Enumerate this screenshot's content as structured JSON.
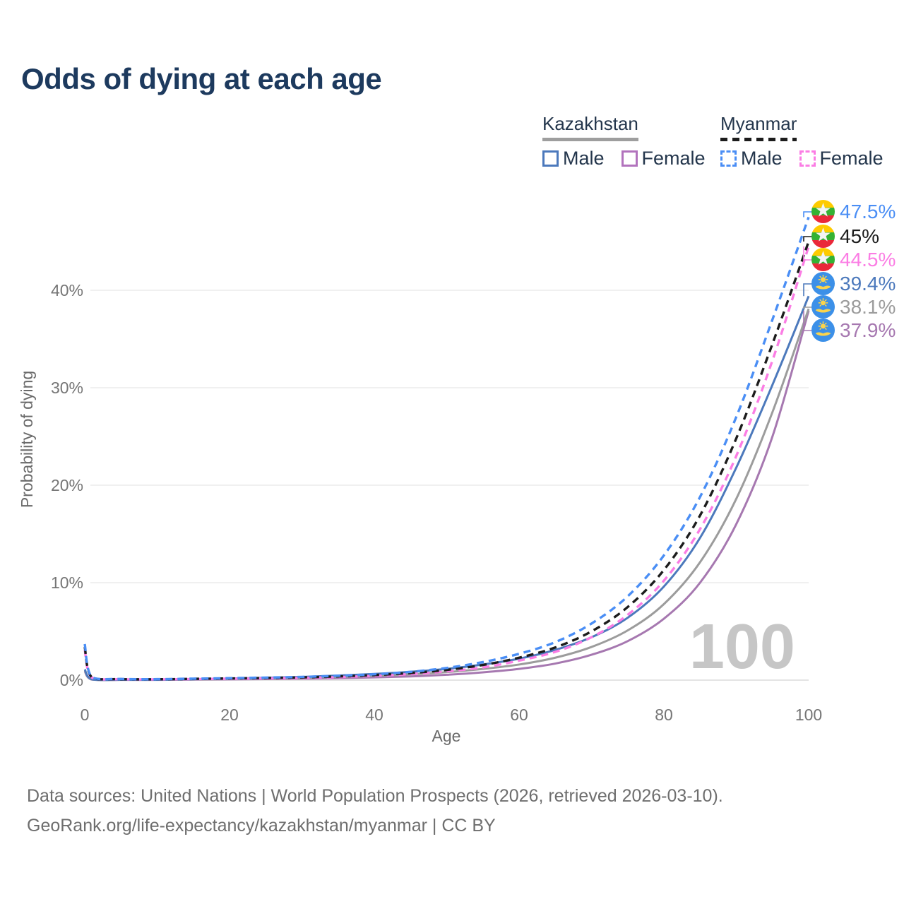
{
  "title": "Odds of dying at each age",
  "legend": {
    "groups": [
      {
        "country": "Kazakhstan",
        "line_style": "solid",
        "line_color": "#9e9e9e",
        "items": [
          {
            "label": "Male",
            "color": "#4c79bc"
          },
          {
            "label": "Female",
            "color": "#b273bd"
          }
        ]
      },
      {
        "country": "Myanmar",
        "line_style": "dashed",
        "line_color": "#1c1c1c",
        "items": [
          {
            "label": "Male",
            "color": "#4a8ef5"
          },
          {
            "label": "Female",
            "color": "#fb7de4"
          }
        ]
      }
    ]
  },
  "watermark_age": "100",
  "footer": {
    "line1": "Data sources: United Nations | World Population Prospects (2026, retrieved 2026-03-10).",
    "line2": "GeoRank.org/life-expectancy/kazakhstan/myanmar | CC BY"
  },
  "chart_data": {
    "type": "line",
    "title": "Odds of dying at each age",
    "xlabel": "Age",
    "ylabel": "Probability of dying",
    "xlim": [
      0,
      100
    ],
    "ylim": [
      0,
      48
    ],
    "xticks": [
      0,
      20,
      40,
      60,
      80,
      100
    ],
    "ytick_values": [
      0,
      10,
      20,
      30,
      40
    ],
    "ytick_labels": [
      "0%",
      "10%",
      "20%",
      "30%",
      "40%"
    ],
    "grid": "horizontal",
    "legend_position": "top-right",
    "ages": [
      0,
      1,
      5,
      10,
      15,
      20,
      25,
      30,
      35,
      40,
      45,
      50,
      55,
      60,
      65,
      70,
      75,
      80,
      85,
      90,
      95,
      100
    ],
    "series": [
      {
        "name": "Myanmar Male",
        "country": "Myanmar",
        "sex": "male",
        "flag": "myanmar",
        "style": "dashed",
        "color": "#4a8ef5",
        "end_label": "47.5%",
        "end_value": 47.5,
        "values": [
          3.7,
          0.3,
          0.12,
          0.1,
          0.15,
          0.2,
          0.26,
          0.33,
          0.45,
          0.6,
          0.85,
          1.25,
          1.85,
          2.7,
          3.9,
          5.8,
          8.6,
          12.8,
          18.8,
          27.0,
          37.0,
          47.5
        ]
      },
      {
        "name": "Myanmar",
        "country": "Myanmar",
        "sex": "both",
        "flag": "myanmar",
        "style": "dashed",
        "color": "#1c1c1c",
        "end_label": "45%",
        "end_value": 45,
        "values": [
          3.4,
          0.27,
          0.1,
          0.09,
          0.13,
          0.17,
          0.22,
          0.28,
          0.38,
          0.52,
          0.73,
          1.05,
          1.55,
          2.3,
          3.35,
          5.0,
          7.5,
          11.3,
          16.9,
          24.8,
          34.5,
          45.0
        ]
      },
      {
        "name": "Myanmar Female",
        "country": "Myanmar",
        "sex": "female",
        "flag": "myanmar",
        "style": "dashed",
        "color": "#fb7de4",
        "end_label": "44.5%",
        "end_value": 44.5,
        "values": [
          3.1,
          0.25,
          0.09,
          0.08,
          0.11,
          0.14,
          0.18,
          0.23,
          0.31,
          0.44,
          0.62,
          0.9,
          1.3,
          2.0,
          2.9,
          4.4,
          6.7,
          10.2,
          15.5,
          23.0,
          32.8,
          44.5
        ]
      },
      {
        "name": "Kazakhstan Male",
        "country": "Kazakhstan",
        "sex": "male",
        "flag": "kazakhstan",
        "style": "solid",
        "color": "#4c79bc",
        "end_label": "39.4%",
        "end_value": 39.4,
        "values": [
          1.1,
          0.08,
          0.04,
          0.04,
          0.09,
          0.16,
          0.24,
          0.33,
          0.47,
          0.63,
          0.85,
          1.15,
          1.6,
          2.2,
          3.1,
          4.4,
          6.4,
          9.6,
          14.6,
          21.8,
          30.3,
          39.4
        ]
      },
      {
        "name": "Kazakhstan",
        "country": "Kazakhstan",
        "sex": "both",
        "flag": "kazakhstan",
        "style": "solid",
        "color": "#9c9c9c",
        "end_label": "38.1%",
        "end_value": 38.1,
        "values": [
          1.0,
          0.07,
          0.035,
          0.035,
          0.07,
          0.12,
          0.17,
          0.24,
          0.33,
          0.45,
          0.6,
          0.82,
          1.15,
          1.6,
          2.3,
          3.4,
          5.1,
          7.8,
          12.1,
          18.6,
          27.5,
          38.1
        ]
      },
      {
        "name": "Kazakhstan Female",
        "country": "Kazakhstan",
        "sex": "female",
        "flag": "kazakhstan",
        "style": "solid",
        "color": "#a678b0",
        "end_label": "37.9%",
        "end_value": 37.9,
        "values": [
          0.9,
          0.06,
          0.03,
          0.03,
          0.05,
          0.08,
          0.11,
          0.15,
          0.2,
          0.28,
          0.38,
          0.55,
          0.8,
          1.15,
          1.7,
          2.6,
          4.0,
          6.3,
          10.0,
          16.0,
          25.0,
          37.9
        ]
      }
    ]
  }
}
